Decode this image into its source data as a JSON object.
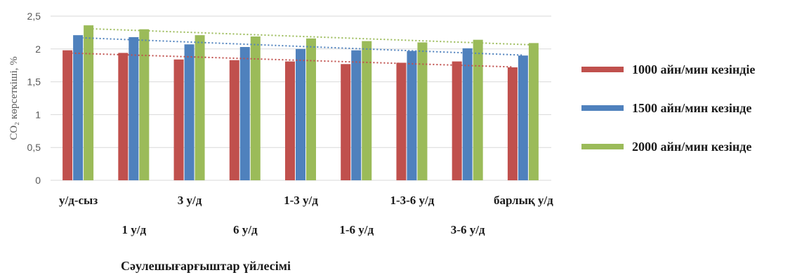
{
  "chart_data": {
    "type": "bar",
    "ylabel": "CO₂ көрсеткіші, %",
    "xlabel": "Сәулешығарғыштар үйлесімі",
    "ylim": [
      0,
      2.5
    ],
    "yticks": [
      "0",
      "0,5",
      "1",
      "1,5",
      "2",
      "2,5"
    ],
    "grid": true,
    "legend_position": "right",
    "categories": [
      "у/д-сыз",
      "1 у/д",
      "3 у/д",
      "6 у/д",
      "1-3 у/д",
      "1-6 у/д",
      "1-3-6 у/д",
      "3-6 у/д",
      "барлық у/д"
    ],
    "series": [
      {
        "name": "1000 айн/мин кезіндіе",
        "color": "#c0504d",
        "values": [
          1.98,
          1.94,
          1.84,
          1.83,
          1.81,
          1.77,
          1.79,
          1.81,
          1.72
        ]
      },
      {
        "name": "1500 айн/мин кезінде",
        "color": "#4f81bd",
        "values": [
          2.21,
          2.18,
          2.07,
          2.03,
          2.0,
          1.98,
          1.97,
          2.01,
          1.9
        ]
      },
      {
        "name": "2000 айн/мин кезінде",
        "color": "#9bbb59",
        "values": [
          2.36,
          2.3,
          2.21,
          2.19,
          2.16,
          2.12,
          2.1,
          2.14,
          2.09
        ]
      }
    ],
    "trendlines": true
  }
}
